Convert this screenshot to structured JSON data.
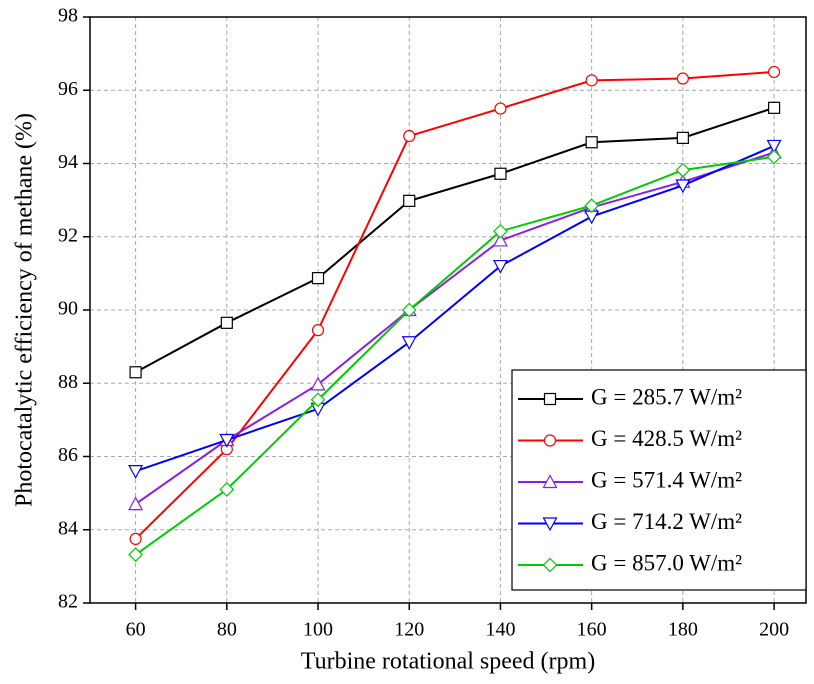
{
  "chart_data": {
    "type": "line",
    "xlabel": "Turbine rotational speed (rpm)",
    "ylabel": "Photocatalytic efficiency of methane (%)",
    "x": [
      60,
      80,
      100,
      120,
      140,
      160,
      180,
      200
    ],
    "series": [
      {
        "name": "G = 285.7 W/m²",
        "color": "#000000",
        "marker": "square",
        "values": [
          88.3,
          89.65,
          90.87,
          92.98,
          93.72,
          94.58,
          94.7,
          95.52
        ]
      },
      {
        "name": "G = 428.5 W/m²",
        "color": "#ff0000",
        "marker": "circle",
        "values": [
          83.75,
          86.2,
          89.45,
          94.75,
          95.5,
          96.27,
          96.32,
          96.5
        ]
      },
      {
        "name": "G = 571.4 W/m²",
        "color": "#8a1ee6",
        "marker": "triangle-up",
        "values": [
          84.7,
          86.45,
          87.97,
          90.0,
          91.9,
          92.8,
          93.5,
          94.3
        ]
      },
      {
        "name": "G = 714.2 W/m²",
        "color": "#0000ff",
        "marker": "triangle-down",
        "values": [
          85.6,
          86.45,
          87.3,
          89.12,
          91.2,
          92.55,
          93.4,
          94.48
        ]
      },
      {
        "name": "G = 857.0 W/m²",
        "color": "#00cc00",
        "marker": "diamond",
        "values": [
          83.32,
          85.1,
          87.55,
          90.0,
          92.15,
          92.85,
          93.82,
          94.18
        ]
      }
    ],
    "xlim": [
      50,
      207
    ],
    "xticks": [
      60,
      80,
      100,
      120,
      140,
      160,
      180,
      200
    ],
    "ylim": [
      82,
      98
    ],
    "yticks": [
      82,
      84,
      86,
      88,
      90,
      92,
      94,
      96,
      98
    ],
    "grid": true,
    "legend": "lower right"
  }
}
